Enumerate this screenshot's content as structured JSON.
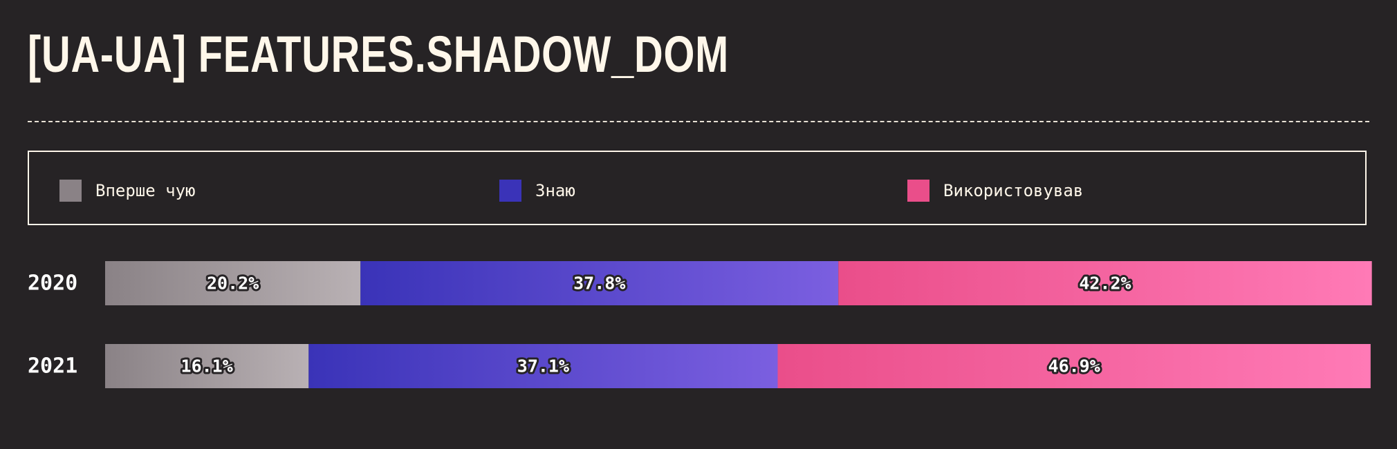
{
  "title": "[UA-UA] FEATURES.SHADOW_DOM",
  "legend": [
    {
      "label": "Вперше чую",
      "color": "#8a8286"
    },
    {
      "label": "Знаю",
      "color": "#3a33b8"
    },
    {
      "label": "Використовував",
      "color": "#ea4e8a"
    }
  ],
  "chart_data": {
    "type": "bar",
    "orientation": "horizontal",
    "stacked": true,
    "normalized": "percent",
    "categories": [
      "2020",
      "2021"
    ],
    "series": [
      {
        "name": "Вперше чую",
        "values": [
          20.2,
          16.1
        ],
        "labels": [
          "20.2%",
          "16.1%"
        ],
        "color_from": "#8a8286",
        "color_to": "#b9b1b4"
      },
      {
        "name": "Знаю",
        "values": [
          37.8,
          37.1
        ],
        "labels": [
          "37.8%",
          "37.1%"
        ],
        "color_from": "#3a33b8",
        "color_to": "#7b5fe0"
      },
      {
        "name": "Використовував",
        "values": [
          42.2,
          46.9
        ],
        "labels": [
          "42.2%",
          "46.9%"
        ],
        "color_from": "#ea4e8a",
        "color_to": "#ff7ab6"
      }
    ],
    "xlim": [
      0,
      100
    ],
    "grid": false,
    "legend_position": "top"
  }
}
